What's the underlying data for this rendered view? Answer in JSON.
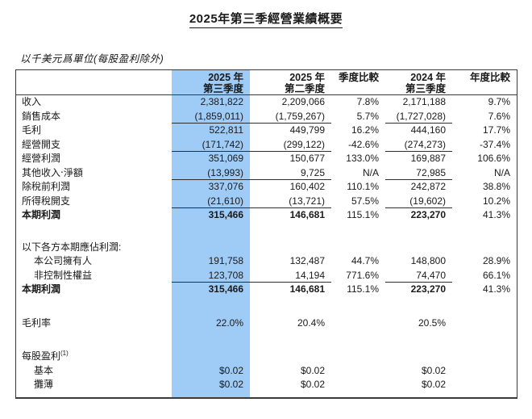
{
  "page": {
    "title": "2025年第三季經營業績概要",
    "units_note": "以千美元爲單位(每股盈利除外)"
  },
  "colors": {
    "highlight_column": "#9fccf7",
    "border": "#3a3a3a",
    "text": "#1a1a1a"
  },
  "table": {
    "columns": [
      {
        "l1": "",
        "l2": ""
      },
      {
        "l1": "2025 年",
        "l2": "第三季度",
        "highlight": true
      },
      {
        "l1": "2025 年",
        "l2": "第二季度"
      },
      {
        "l1": "季度比較",
        "l2": ""
      },
      {
        "l1": "2024 年",
        "l2": "第三季度"
      },
      {
        "l1": "年度比較",
        "l2": ""
      }
    ],
    "rows": [
      {
        "label": "收入",
        "values": [
          "2,381,822",
          "2,209,066",
          "7.8%",
          "2,171,188",
          "9.7%"
        ]
      },
      {
        "label": "銷售成本",
        "values": [
          "(1,859,011)",
          "(1,759,267)",
          "5.7%",
          "(1,727,028)",
          "7.6%"
        ],
        "rule": true
      },
      {
        "label": "毛利",
        "values": [
          "522,811",
          "449,799",
          "16.2%",
          "444,160",
          "17.7%"
        ]
      },
      {
        "label": "經營開支",
        "values": [
          "(171,742)",
          "(299,122)",
          "-42.6%",
          "(274,273)",
          "-37.4%"
        ],
        "rule": true
      },
      {
        "label": "經營利潤",
        "values": [
          "351,069",
          "150,677",
          "133.0%",
          "169,887",
          "106.6%"
        ]
      },
      {
        "label": "其他收入‧淨額",
        "values": [
          "(13,993)",
          "9,725",
          "N/A",
          "72,985",
          "N/A"
        ],
        "rule": true
      },
      {
        "label": "除稅前利潤",
        "values": [
          "337,076",
          "160,402",
          "110.1%",
          "242,872",
          "38.8%"
        ]
      },
      {
        "label": "所得稅開支",
        "values": [
          "(21,610)",
          "(13,721)",
          "57.5%",
          "(19,602)",
          "10.2%"
        ],
        "rule": true
      },
      {
        "label": "本期利潤",
        "bold": true,
        "values": [
          "315,466",
          "146,681",
          "115.1%",
          "223,270",
          "41.3%"
        ]
      },
      {
        "spacer": 22
      },
      {
        "label": "以下各方本期應佔利潤:",
        "values": [
          "",
          "",
          "",
          "",
          ""
        ]
      },
      {
        "label": "本公司擁有人",
        "indent": true,
        "values": [
          "191,758",
          "132,487",
          "44.7%",
          "148,800",
          "28.9%"
        ]
      },
      {
        "label": "非控制性權益",
        "indent": true,
        "values": [
          "123,708",
          "14,194",
          "771.6%",
          "74,470",
          "66.1%"
        ],
        "rule": true
      },
      {
        "label": "本期利潤",
        "bold": true,
        "values": [
          "315,466",
          "146,681",
          "115.1%",
          "223,270",
          "41.3%"
        ]
      },
      {
        "spacer": 24
      },
      {
        "label": "毛利率",
        "values": [
          "22.0%",
          "20.4%",
          "",
          "20.5%",
          ""
        ]
      },
      {
        "spacer": 24
      },
      {
        "label": "每股盈利",
        "sup": "(1)",
        "values": [
          "",
          "",
          "",
          "",
          ""
        ]
      },
      {
        "label": "基本",
        "indent": true,
        "values": [
          "$0.02",
          "$0.02",
          "",
          "$0.02",
          ""
        ]
      },
      {
        "label": "攤薄",
        "indent": true,
        "values": [
          "$0.02",
          "$0.02",
          "",
          "$0.02",
          ""
        ]
      },
      {
        "spacer": 6
      }
    ]
  }
}
